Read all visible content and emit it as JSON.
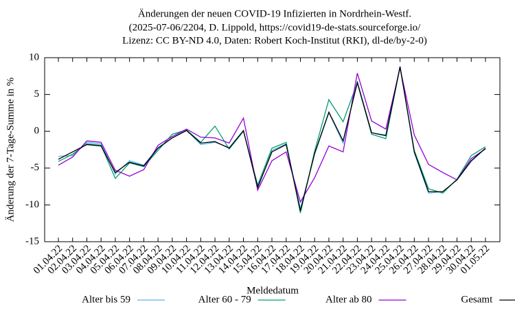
{
  "chart_data": {
    "type": "line",
    "title": [
      "Änderungen der neuen COVID-19 Infizierten in Nordrhein-Westf.",
      "(2025-07-06/2204, D. Lippold, https://covid19-de-stats.sourceforge.io/",
      "Lizenz: CC BY-ND 4.0, Daten: Robert Koch-Institut (RKI), dl-de/by-2-0)"
    ],
    "x_label": "Meldedatum",
    "y_label": "Änderung der 7-Tage-Summe in %",
    "categories": [
      "01.04.22",
      "02.04.22",
      "03.04.22",
      "04.04.22",
      "05.04.22",
      "06.04.22",
      "07.04.22",
      "08.04.22",
      "09.04.22",
      "10.04.22",
      "11.04.22",
      "12.04.22",
      "13.04.22",
      "14.04.22",
      "15.04.22",
      "16.04.22",
      "17.04.22",
      "18.04.22",
      "19.04.22",
      "20.04.22",
      "21.04.22",
      "22.04.22",
      "23.04.22",
      "24.04.22",
      "25.04.22",
      "26.04.22",
      "27.04.22",
      "28.04.22",
      "29.04.22",
      "30.04.22",
      "01.05.22"
    ],
    "series": [
      {
        "name": "Alter bis 59",
        "color": "#56b4e9",
        "values": [
          -3.4,
          -3.3,
          -1.5,
          -1.7,
          -5.8,
          -4.0,
          -4.6,
          -2.2,
          -0.9,
          0.2,
          -1.8,
          -1.5,
          -2.2,
          0.1,
          -7.8,
          -2.6,
          -1.7,
          -10.5,
          -3.1,
          2.5,
          -1.6,
          6.8,
          -0.2,
          -0.5,
          8.8,
          -2.9,
          -8.4,
          -8.2,
          -6.6,
          -4.1,
          -2.3
        ]
      },
      {
        "name": "Alter 60 - 79",
        "color": "#009e73",
        "values": [
          -4.1,
          -3.1,
          -1.7,
          -1.9,
          -6.4,
          -4.3,
          -4.8,
          -2.6,
          -0.4,
          0.2,
          -1.5,
          0.7,
          -2.4,
          0.0,
          -7.3,
          -2.3,
          -1.5,
          -11.1,
          -2.7,
          4.3,
          1.3,
          6.6,
          -0.4,
          -1.0,
          8.7,
          -2.6,
          -7.8,
          -8.4,
          -6.5,
          -3.3,
          -2.1
        ]
      },
      {
        "name": "Alter ab 80",
        "color": "#9400d3",
        "values": [
          -4.6,
          -3.5,
          -1.3,
          -1.5,
          -5.3,
          -6.1,
          -5.2,
          -1.9,
          -0.7,
          0.3,
          -0.8,
          -0.9,
          -1.6,
          1.8,
          -8.0,
          -4.0,
          -2.8,
          -9.6,
          -6.3,
          -2.0,
          -2.8,
          7.9,
          1.4,
          0.3,
          8.6,
          -0.5,
          -4.5,
          -5.6,
          -6.6,
          -3.7,
          -2.4
        ]
      },
      {
        "name": "Gesamt",
        "color": "#000000",
        "values": [
          -3.8,
          -2.8,
          -1.8,
          -2.0,
          -5.6,
          -4.2,
          -4.7,
          -2.3,
          -0.9,
          0.1,
          -1.6,
          -1.4,
          -2.3,
          0.1,
          -7.6,
          -2.8,
          -1.8,
          -10.8,
          -3.0,
          2.6,
          -1.3,
          6.6,
          -0.2,
          -0.6,
          8.8,
          -2.8,
          -8.2,
          -8.2,
          -6.6,
          -4.0,
          -2.3
        ]
      }
    ],
    "ylim": [
      -15,
      10
    ],
    "yticks": [
      -15,
      -10,
      -5,
      0,
      5,
      10
    ],
    "grid": false,
    "legend": "bottom"
  }
}
